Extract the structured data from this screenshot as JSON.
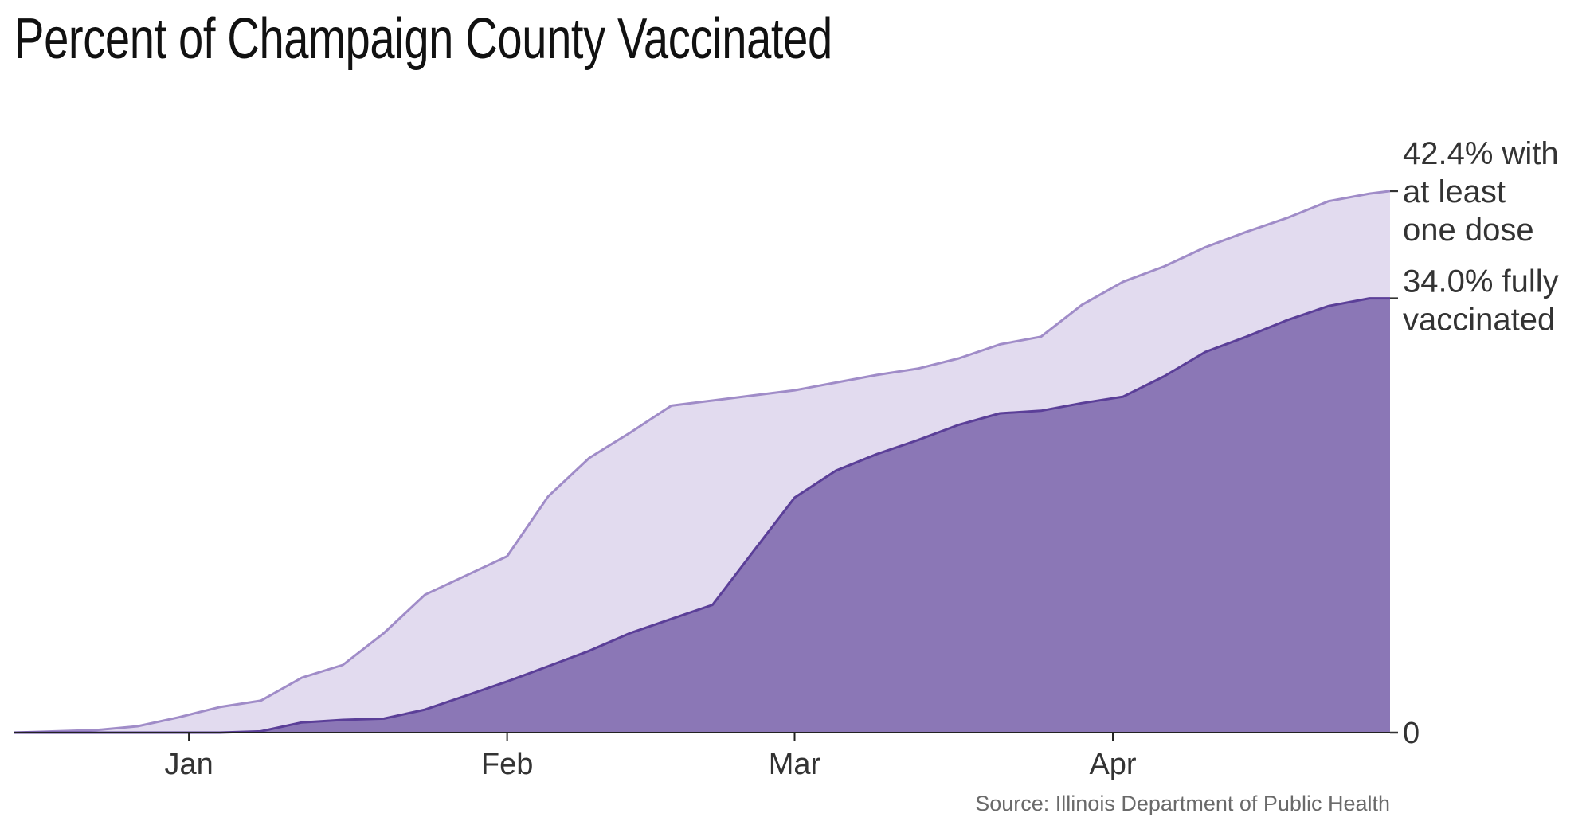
{
  "chart_data": {
    "type": "area",
    "title": "Percent of Champaign County Vaccinated",
    "x_ticks": [
      "Jan",
      "Feb",
      "Mar",
      "Apr"
    ],
    "y_ticks": [
      "0"
    ],
    "ylim": [
      0,
      50
    ],
    "grid": false,
    "source": "Source: Illinois Department of Public Health",
    "colors": {
      "one_dose_fill": "#e2dbef",
      "one_dose_line": "#a08cc8",
      "full_fill": "#8b77b6",
      "full_line": "#5b3f98",
      "text": "#333333"
    },
    "series": [
      {
        "key": "one_dose",
        "label_lines": [
          "42.4% with",
          "at least",
          "one dose"
        ],
        "x": [
          "2020-12-15",
          "2020-12-19",
          "2020-12-23",
          "2020-12-27",
          "2020-12-31",
          "2021-01-04",
          "2021-01-08",
          "2021-01-12",
          "2021-01-16",
          "2021-01-20",
          "2021-01-24",
          "2021-01-28",
          "2021-02-01",
          "2021-02-05",
          "2021-02-09",
          "2021-02-13",
          "2021-02-17",
          "2021-02-21",
          "2021-02-25",
          "2021-03-01",
          "2021-03-05",
          "2021-03-09",
          "2021-03-13",
          "2021-03-17",
          "2021-03-21",
          "2021-03-25",
          "2021-03-29",
          "2021-04-02",
          "2021-04-06",
          "2021-04-10",
          "2021-04-14",
          "2021-04-18",
          "2021-04-22",
          "2021-04-26",
          "2021-04-28"
        ],
        "values": [
          0.0,
          0.1,
          0.2,
          0.5,
          1.2,
          2.0,
          2.5,
          4.3,
          5.3,
          7.8,
          10.8,
          12.3,
          13.8,
          18.5,
          21.5,
          23.5,
          25.6,
          26.0,
          26.4,
          26.8,
          27.4,
          28.0,
          28.5,
          29.3,
          30.4,
          31.0,
          33.5,
          35.3,
          36.5,
          38.0,
          39.2,
          40.3,
          41.6,
          42.2,
          42.4
        ]
      },
      {
        "key": "fully_vaccinated",
        "label_lines": [
          "34.0% fully",
          "vaccinated"
        ],
        "x": [
          "2020-12-15",
          "2020-12-19",
          "2020-12-23",
          "2020-12-27",
          "2020-12-31",
          "2021-01-04",
          "2021-01-08",
          "2021-01-12",
          "2021-01-16",
          "2021-01-20",
          "2021-01-24",
          "2021-01-28",
          "2021-02-01",
          "2021-02-05",
          "2021-02-09",
          "2021-02-13",
          "2021-02-17",
          "2021-02-21",
          "2021-02-25",
          "2021-03-01",
          "2021-03-05",
          "2021-03-09",
          "2021-03-13",
          "2021-03-17",
          "2021-03-21",
          "2021-03-25",
          "2021-03-29",
          "2021-04-02",
          "2021-04-06",
          "2021-04-10",
          "2021-04-14",
          "2021-04-18",
          "2021-04-22",
          "2021-04-26",
          "2021-04-28"
        ],
        "values": [
          0.0,
          0.0,
          0.0,
          0.0,
          0.0,
          0.0,
          0.1,
          0.8,
          1.0,
          1.1,
          1.8,
          2.9,
          4.0,
          5.2,
          6.4,
          7.8,
          8.9,
          10.0,
          14.2,
          18.4,
          20.5,
          21.8,
          22.9,
          24.1,
          25.0,
          25.2,
          25.8,
          26.3,
          27.9,
          29.8,
          31.0,
          32.3,
          33.4,
          34.0,
          34.0
        ]
      }
    ]
  }
}
